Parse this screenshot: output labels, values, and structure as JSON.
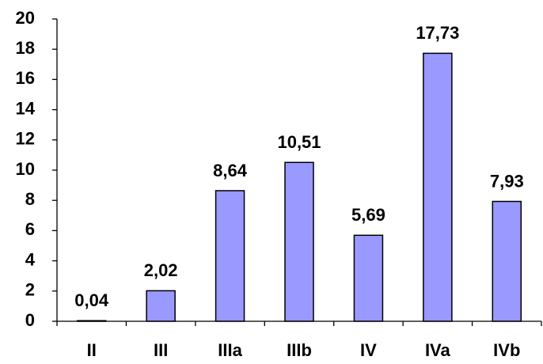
{
  "chart_data": {
    "type": "bar",
    "categories": [
      "II",
      "III",
      "IIIa",
      "IIIb",
      "IV",
      "IVa",
      "IVb"
    ],
    "values": [
      0.04,
      2.02,
      8.64,
      10.51,
      5.69,
      17.73,
      7.93
    ],
    "value_labels": [
      "0,04",
      "2,02",
      "8,64",
      "10,51",
      "5,69",
      "17,73",
      "7,93"
    ],
    "color": "#9999ff",
    "ylim": [
      0,
      20
    ],
    "yticks": [
      0,
      2,
      4,
      6,
      8,
      10,
      12,
      14,
      16,
      18,
      20
    ],
    "grid": false
  }
}
